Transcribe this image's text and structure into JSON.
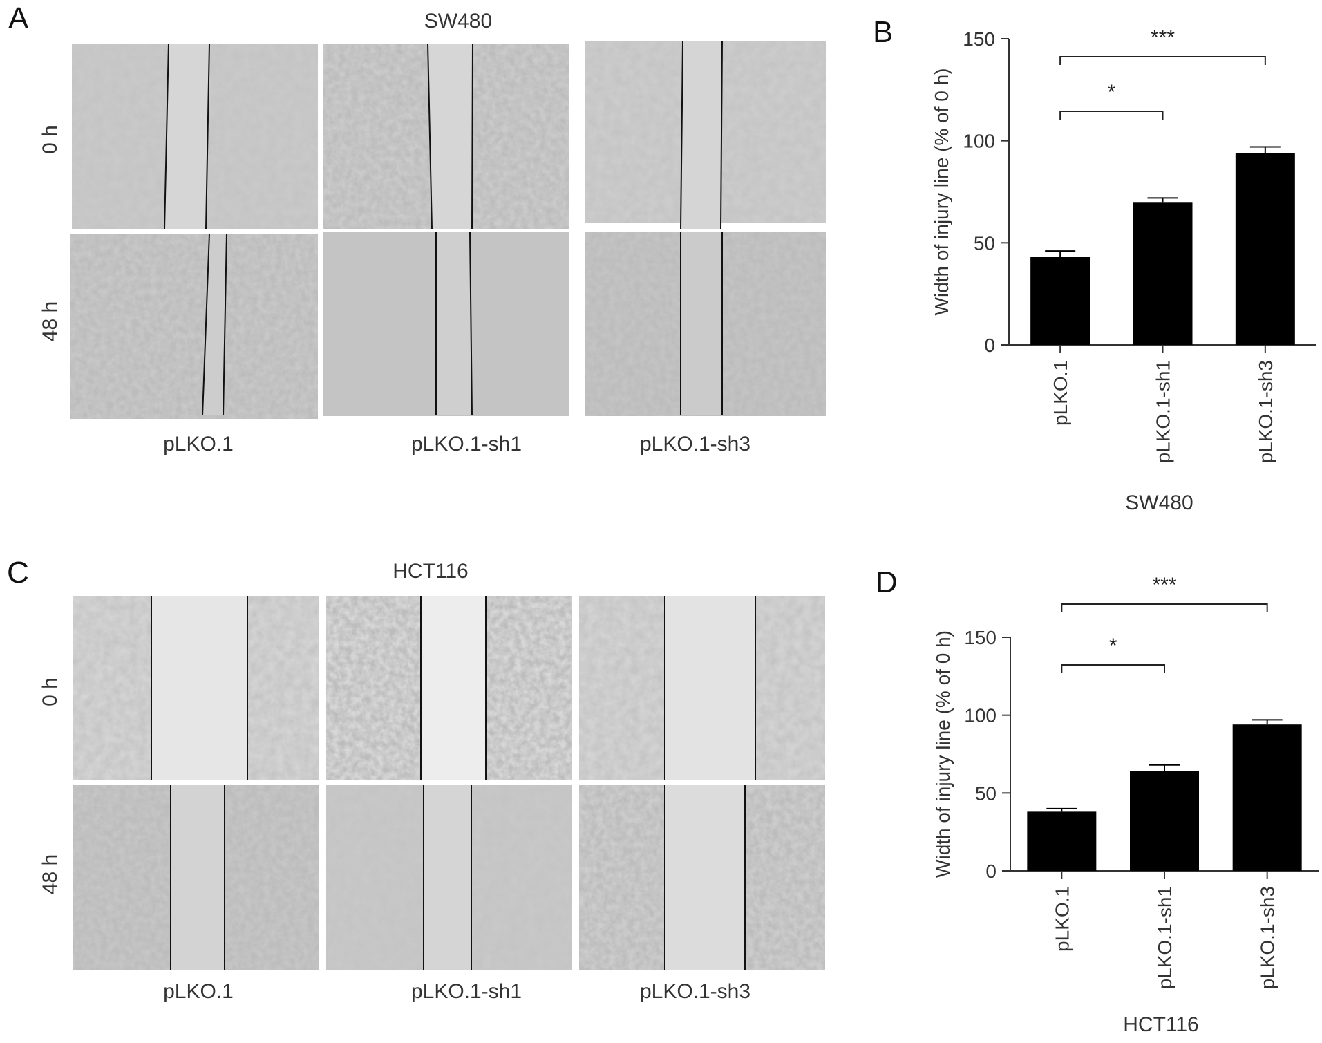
{
  "panels": {
    "A": {
      "letter": "A",
      "title": "SW480",
      "row_labels": [
        "0 h",
        "48 h"
      ],
      "col_labels": [
        "pLKO.1",
        "pLKO.1-sh1",
        "pLKO.1-sh3"
      ]
    },
    "B": {
      "letter": "B"
    },
    "C": {
      "letter": "C",
      "title": "HCT116",
      "row_labels": [
        "0 h",
        "48 h"
      ],
      "col_labels": [
        "pLKO.1",
        "pLKO.1-sh1",
        "pLKO.1-sh3"
      ]
    },
    "D": {
      "letter": "D"
    }
  },
  "chart_data": [
    {
      "type": "bar",
      "panel": "B",
      "categories": [
        "pLKO.1",
        "pLKO.1-sh1",
        "pLKO.1-sh3"
      ],
      "values": [
        43,
        70,
        94
      ],
      "errors": [
        3,
        2,
        3
      ],
      "ylabel": "Width of injury line (% of 0 h)",
      "xlabel": "SW480",
      "ylim": [
        0,
        150
      ],
      "yticks": [
        0,
        50,
        100,
        150
      ],
      "bar_color": "#000000",
      "significance": [
        {
          "from": 0,
          "to": 1,
          "label": "*"
        },
        {
          "from": 0,
          "to": 2,
          "label": "***"
        }
      ]
    },
    {
      "type": "bar",
      "panel": "D",
      "categories": [
        "pLKO.1",
        "pLKO.1-sh1",
        "pLKO.1-sh3"
      ],
      "values": [
        38,
        64,
        94
      ],
      "errors": [
        2,
        4,
        3
      ],
      "ylabel": "Width of injury line (% of 0 h)",
      "xlabel": "HCT116",
      "ylim": [
        0,
        150
      ],
      "yticks": [
        0,
        50,
        100,
        150
      ],
      "bar_color": "#000000",
      "significance": [
        {
          "from": 0,
          "to": 1,
          "label": "*"
        },
        {
          "from": 0,
          "to": 2,
          "label": "***"
        }
      ]
    }
  ]
}
